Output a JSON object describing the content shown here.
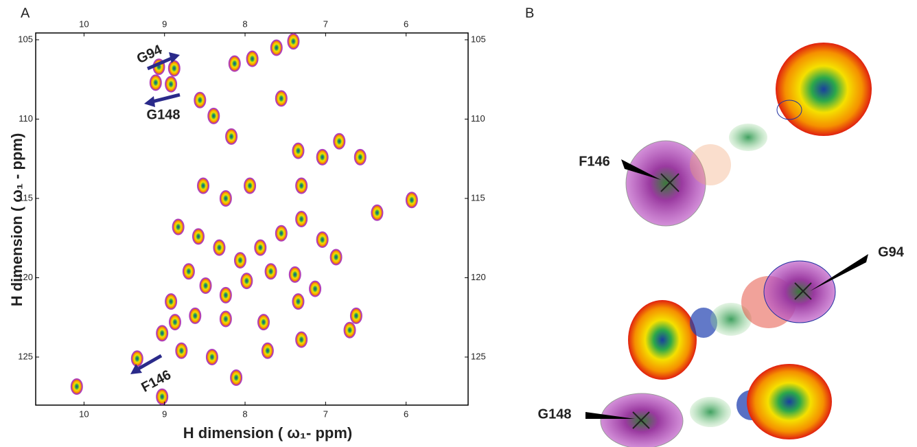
{
  "chart_data": {
    "type": "scatter",
    "panel_label": "A",
    "xlabel": "H dimension (  ω₁- ppm)",
    "ylabel": "H dimension (  ω₁ - ppm)",
    "xlim": [
      10.6,
      5.23
    ],
    "ylim": [
      104.57,
      128.03
    ],
    "xticks": [
      10,
      9,
      8,
      7,
      6
    ],
    "yticks": [
      105,
      110,
      115,
      120,
      125
    ],
    "annotations": [
      "G94",
      "G148",
      "F146"
    ],
    "color": "#f0a000",
    "x": [
      10.09,
      9.34,
      9.03,
      9.03,
      9.07,
      8.88,
      9.11,
      8.92,
      8.13,
      7.91,
      7.61,
      7.4,
      8.56,
      8.39,
      7.55,
      8.17,
      7.34,
      7.04,
      6.83,
      6.57,
      8.52,
      8.24,
      7.94,
      7.3,
      6.36,
      5.93,
      8.83,
      8.58,
      8.32,
      8.06,
      7.81,
      7.55,
      7.3,
      7.04,
      6.87,
      8.7,
      8.49,
      8.24,
      7.98,
      7.68,
      7.38,
      7.13,
      8.92,
      8.62,
      8.24,
      7.77,
      7.34,
      7.72,
      7.3,
      6.62,
      6.7,
      8.11,
      8.41,
      8.79,
      8.87
    ],
    "y": [
      126.86,
      125.1,
      123.5,
      127.5,
      106.7,
      106.8,
      107.7,
      107.8,
      106.5,
      106.2,
      105.5,
      105.1,
      108.8,
      109.8,
      108.7,
      111.1,
      112.0,
      112.4,
      111.4,
      112.4,
      114.2,
      115.0,
      114.2,
      114.2,
      115.9,
      115.1,
      116.8,
      117.4,
      118.1,
      118.9,
      118.1,
      117.2,
      116.3,
      117.6,
      118.7,
      119.6,
      120.5,
      121.1,
      120.2,
      119.6,
      119.8,
      120.7,
      121.5,
      122.4,
      122.6,
      122.8,
      121.5,
      124.6,
      123.9,
      122.4,
      123.3,
      126.3,
      125.0,
      124.6,
      122.8
    ]
  },
  "panel_b": {
    "label": "B",
    "annotations": [
      "F146",
      "G94",
      "G148"
    ]
  }
}
